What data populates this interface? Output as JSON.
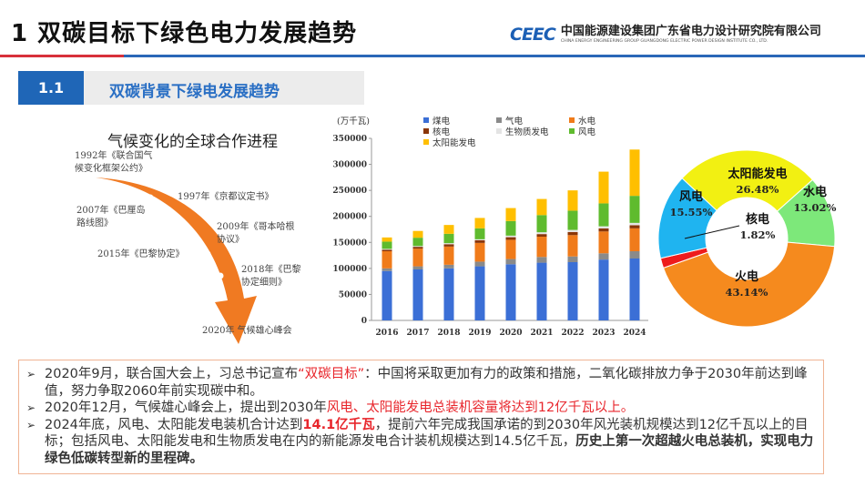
{
  "header": {
    "title": "1  双碳目标下绿色电力发展趋势",
    "logo_mark": "CEEC",
    "org_cn": "中国能源建设集团广东省电力设计研究院有限公司",
    "org_en": "CHINA ENERGY ENGINEERING GROUP GUANGDONG ELECTRIC POWER DESIGN INSTITUTE CO., LTD."
  },
  "section": {
    "number": "1.1",
    "title": "双碳背景下绿电发展趋势"
  },
  "timeline": {
    "title": "气候变化的全球合作进程",
    "items": [
      "1992年《联合国气候变化框架公约》",
      "1997年《京都议定书》",
      "2007年《巴厘岛路线图》",
      "2009年《哥本哈根协议》",
      "2015年《巴黎协定》",
      "2018年《巴黎协定细则》",
      "2020年 气候雄心峰会"
    ],
    "arrow_color": "#f07a22"
  },
  "chart_data": [
    {
      "type": "bar",
      "stacked": true,
      "ylabel": "(万千瓦)",
      "ylim": [
        0,
        350000
      ],
      "yticks": [
        0,
        50000,
        100000,
        150000,
        200000,
        250000,
        300000,
        350000
      ],
      "categories": [
        "2016",
        "2017",
        "2018",
        "2019",
        "2020",
        "2021",
        "2022",
        "2023",
        "2024"
      ],
      "legend_position": "top",
      "series": [
        {
          "name": "煤电",
          "color": "#3b6fd6",
          "values": [
            95000,
            98000,
            100000,
            104000,
            108000,
            111000,
            112000,
            117000,
            119000
          ]
        },
        {
          "name": "气电",
          "color": "#8a8a8a",
          "values": [
            5000,
            6000,
            7000,
            9000,
            10000,
            11000,
            11000,
            12000,
            14000
          ]
        },
        {
          "name": "水电",
          "color": "#f07b1a",
          "values": [
            33000,
            34000,
            35000,
            36000,
            37000,
            39000,
            41000,
            42000,
            44000
          ]
        },
        {
          "name": "核电",
          "color": "#8a3608",
          "values": [
            3000,
            3500,
            4500,
            5000,
            5000,
            5000,
            6000,
            6000,
            6000
          ]
        },
        {
          "name": "生物质发电",
          "color": "#e4e4e4",
          "values": [
            1500,
            1500,
            2000,
            2000,
            3000,
            3500,
            4000,
            4000,
            4500
          ]
        },
        {
          "name": "风电",
          "color": "#5fbb2e",
          "values": [
            14000,
            16000,
            18000,
            21000,
            28000,
            33000,
            37000,
            44000,
            52000
          ]
        },
        {
          "name": "太阳能发电",
          "color": "#ffbf00",
          "values": [
            8000,
            13000,
            17000,
            20000,
            25000,
            31000,
            39000,
            61000,
            89000
          ]
        }
      ]
    },
    {
      "type": "pie",
      "donut": true,
      "slices": [
        {
          "label": "太阳能发电",
          "value": 26.48,
          "text": "26.48%",
          "color": "#f2f012"
        },
        {
          "label": "水电",
          "value": 13.02,
          "text": "13.02%",
          "color": "#7de87a"
        },
        {
          "label": "火电",
          "value": 43.14,
          "text": "43.14%",
          "color": "#f58a1e"
        },
        {
          "label": "核电",
          "value": 1.82,
          "text": "1.82%",
          "color": "#ee1c1c"
        },
        {
          "label": "风电",
          "value": 15.55,
          "text": "15.55%",
          "color": "#1fb4f0"
        }
      ]
    }
  ],
  "bullets": [
    {
      "parts": [
        {
          "t": "2020年9月，联合国大会上，习总书记宣布",
          "s": ""
        },
        {
          "t": "“双碳目标”",
          "s": "red"
        },
        {
          "t": "：中国将采取更加有力的政策和措施，二氧化碳排放力争于2030年前达到峰值，努力争取2060年前实现碳中和。",
          "s": ""
        }
      ]
    },
    {
      "parts": [
        {
          "t": "2020年12月，气候雄心峰会上，提出到2030年",
          "s": ""
        },
        {
          "t": "风电、太阳能发电总装机容量将达到12亿千瓦以上。",
          "s": "red"
        }
      ]
    },
    {
      "parts": [
        {
          "t": "2024年底，风电、太阳能发电装机合计达到",
          "s": ""
        },
        {
          "t": "14.1亿千瓦",
          "s": "redbold"
        },
        {
          "t": "，提前六年完成我国承诺的到2030年风光装机规模达到12亿千瓦以上的目标；包括风电、太阳能发电和生物质发电在内的新能源发电合计装机规模达到14.5亿千瓦，",
          "s": ""
        },
        {
          "t": "历史上第一次超越火电总装机，实现电力绿色低碳转型新的里程碑。",
          "s": "bold"
        }
      ]
    }
  ]
}
